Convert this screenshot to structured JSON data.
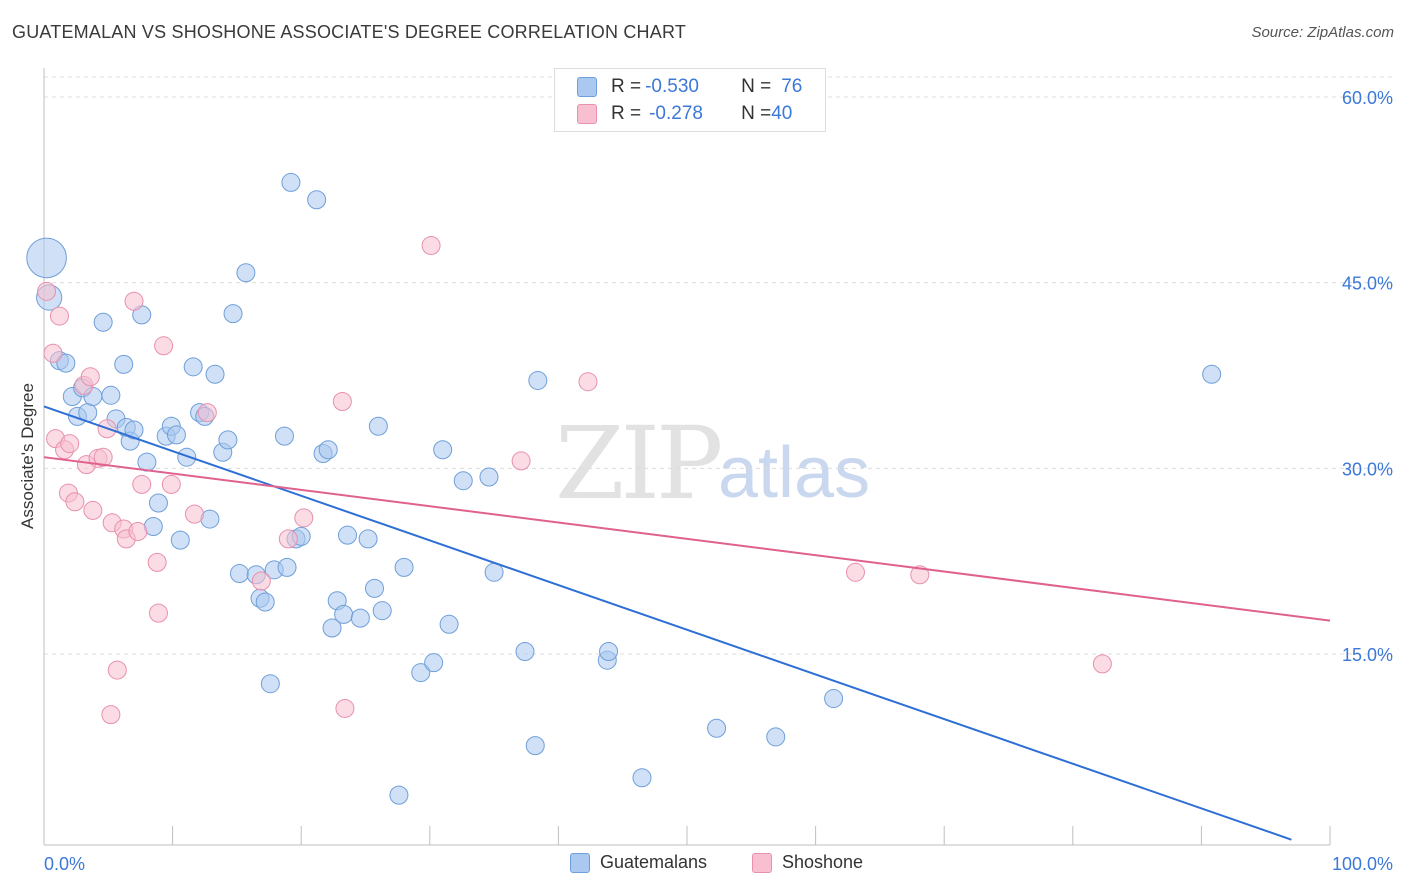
{
  "header": {
    "title": "GUATEMALAN VS SHOSHONE ASSOCIATE'S DEGREE CORRELATION CHART",
    "source": "Source: ZipAtlas.com"
  },
  "watermark": {
    "zip": "ZIP",
    "atlas": "atlas"
  },
  "legend_top": {
    "rows": [
      {
        "r_label": "R = ",
        "r_value": "-0.530",
        "n_label": "N = ",
        "n_value": "76"
      },
      {
        "r_label": "R = ",
        "r_value": "-0.278",
        "n_label": "N = ",
        "n_value": "40"
      }
    ]
  },
  "legend_bottom": {
    "items": [
      "Guatemalans",
      "Shoshone"
    ]
  },
  "colors": {
    "blue_fill": "#aac8f0",
    "blue_stroke": "#6f9fd8",
    "blue_line": "#2e6fd6",
    "pink_fill": "#f7bfd0",
    "pink_stroke": "#e890ad",
    "pink_line": "#e0608e",
    "tick_label": "#3c78d8",
    "grid": "#dcdcdc"
  },
  "chart_data": {
    "type": "scatter",
    "title": "GUATEMALAN VS SHOSHONE ASSOCIATE'S DEGREE CORRELATION CHART",
    "xlabel": "",
    "ylabel": "Associate's Degree",
    "xlim": [
      0,
      100
    ],
    "ylim": [
      0,
      60
    ],
    "x_tick_labels": [
      "0.0%",
      "100.0%"
    ],
    "y_ticks": [
      15,
      30,
      45,
      60
    ],
    "y_tick_labels": [
      "15.0%",
      "30.0%",
      "45.0%",
      "60.0%"
    ],
    "grid": true,
    "legend_position": "top-center",
    "series": [
      {
        "name": "Guatemalans",
        "r": -0.53,
        "n": 76,
        "trend": {
          "x": [
            0,
            97
          ],
          "y": [
            35.0,
            0
          ]
        },
        "points": [
          [
            0.2,
            47.0,
            2.2
          ],
          [
            0.4,
            43.8,
            1.4
          ],
          [
            1.2,
            38.7,
            1
          ],
          [
            1.7,
            38.5,
            1
          ],
          [
            2.2,
            35.8,
            1
          ],
          [
            2.6,
            34.2,
            1
          ],
          [
            3.0,
            36.5,
            1
          ],
          [
            3.4,
            34.5,
            1
          ],
          [
            3.8,
            35.8,
            1
          ],
          [
            4.6,
            41.8,
            1
          ],
          [
            5.2,
            35.9,
            1
          ],
          [
            5.6,
            34.0,
            1
          ],
          [
            6.2,
            38.4,
            1
          ],
          [
            6.4,
            33.3,
            1
          ],
          [
            6.7,
            32.2,
            1
          ],
          [
            7.0,
            33.1,
            1
          ],
          [
            7.6,
            42.4,
            1
          ],
          [
            8.0,
            30.5,
            1
          ],
          [
            8.5,
            25.3,
            1
          ],
          [
            8.9,
            27.2,
            1
          ],
          [
            9.5,
            32.6,
            1
          ],
          [
            9.9,
            33.4,
            1
          ],
          [
            10.3,
            32.7,
            1
          ],
          [
            10.6,
            24.2,
            1
          ],
          [
            11.1,
            30.9,
            1
          ],
          [
            11.6,
            38.2,
            1
          ],
          [
            12.1,
            34.5,
            1
          ],
          [
            12.5,
            34.2,
            1
          ],
          [
            12.9,
            25.9,
            1
          ],
          [
            13.3,
            37.6,
            1
          ],
          [
            13.9,
            31.3,
            1
          ],
          [
            14.3,
            32.3,
            1
          ],
          [
            14.7,
            42.5,
            1
          ],
          [
            15.2,
            21.5,
            1
          ],
          [
            15.7,
            45.8,
            1
          ],
          [
            16.5,
            21.4,
            1
          ],
          [
            16.8,
            19.5,
            1
          ],
          [
            17.2,
            19.2,
            1
          ],
          [
            17.6,
            12.6,
            1
          ],
          [
            17.9,
            21.8,
            1
          ],
          [
            18.7,
            32.6,
            1
          ],
          [
            18.9,
            22.0,
            1
          ],
          [
            19.2,
            53.1,
            1
          ],
          [
            19.6,
            24.3,
            1
          ],
          [
            20.0,
            24.5,
            1
          ],
          [
            21.2,
            51.7,
            1
          ],
          [
            21.7,
            31.2,
            1
          ],
          [
            22.1,
            31.5,
            1
          ],
          [
            22.4,
            17.1,
            1
          ],
          [
            22.8,
            19.3,
            1
          ],
          [
            23.3,
            18.2,
            1
          ],
          [
            23.6,
            24.6,
            1
          ],
          [
            24.6,
            17.9,
            1
          ],
          [
            25.2,
            24.3,
            1
          ],
          [
            25.7,
            20.3,
            1
          ],
          [
            26.0,
            33.4,
            1
          ],
          [
            26.3,
            18.5,
            1
          ],
          [
            27.6,
            3.6,
            1
          ],
          [
            28.0,
            22.0,
            1
          ],
          [
            29.3,
            13.5,
            1
          ],
          [
            30.3,
            14.3,
            1
          ],
          [
            31.0,
            31.5,
            1
          ],
          [
            31.5,
            17.4,
            1
          ],
          [
            32.6,
            29.0,
            1
          ],
          [
            34.6,
            29.3,
            1
          ],
          [
            35.0,
            21.6,
            1
          ],
          [
            37.4,
            15.2,
            1
          ],
          [
            38.2,
            7.6,
            1
          ],
          [
            38.4,
            37.1,
            1
          ],
          [
            43.8,
            14.5,
            1
          ],
          [
            43.9,
            15.2,
            1
          ],
          [
            46.5,
            5.0,
            1
          ],
          [
            52.3,
            9.0,
            1
          ],
          [
            56.9,
            8.3,
            1
          ],
          [
            61.4,
            11.4,
            1
          ],
          [
            90.8,
            37.6,
            1
          ]
        ]
      },
      {
        "name": "Shoshone",
        "r": -0.278,
        "n": 40,
        "trend": {
          "x": [
            0,
            100
          ],
          "y": [
            30.9,
            17.7
          ]
        },
        "points": [
          [
            0.2,
            44.3,
            1
          ],
          [
            0.7,
            39.3,
            1
          ],
          [
            0.9,
            32.4,
            1
          ],
          [
            1.2,
            42.3,
            1
          ],
          [
            1.6,
            31.5,
            1
          ],
          [
            1.9,
            28.0,
            1
          ],
          [
            2.0,
            32.0,
            1
          ],
          [
            2.4,
            27.3,
            1
          ],
          [
            3.1,
            36.7,
            1
          ],
          [
            3.3,
            30.3,
            1
          ],
          [
            3.6,
            37.4,
            1
          ],
          [
            3.8,
            26.6,
            1
          ],
          [
            4.2,
            30.8,
            1
          ],
          [
            4.6,
            30.9,
            1
          ],
          [
            4.9,
            33.2,
            1
          ],
          [
            5.2,
            10.1,
            1
          ],
          [
            5.3,
            25.6,
            1
          ],
          [
            5.7,
            13.7,
            1
          ],
          [
            6.2,
            25.1,
            1
          ],
          [
            6.4,
            24.3,
            1
          ],
          [
            7.0,
            43.5,
            1
          ],
          [
            7.3,
            24.9,
            1
          ],
          [
            7.6,
            28.7,
            1
          ],
          [
            8.8,
            22.4,
            1
          ],
          [
            8.9,
            18.3,
            1
          ],
          [
            9.3,
            39.9,
            1
          ],
          [
            9.9,
            28.7,
            1
          ],
          [
            11.7,
            26.3,
            1
          ],
          [
            12.7,
            34.5,
            1
          ],
          [
            16.9,
            20.9,
            1
          ],
          [
            19.0,
            24.3,
            1
          ],
          [
            20.2,
            26.0,
            1
          ],
          [
            23.2,
            35.4,
            1
          ],
          [
            23.4,
            10.6,
            1
          ],
          [
            30.1,
            48.0,
            1
          ],
          [
            37.1,
            30.6,
            1
          ],
          [
            42.3,
            37.0,
            1
          ],
          [
            63.1,
            21.6,
            1
          ],
          [
            68.1,
            21.4,
            1
          ],
          [
            82.3,
            14.2,
            1
          ]
        ]
      }
    ]
  }
}
